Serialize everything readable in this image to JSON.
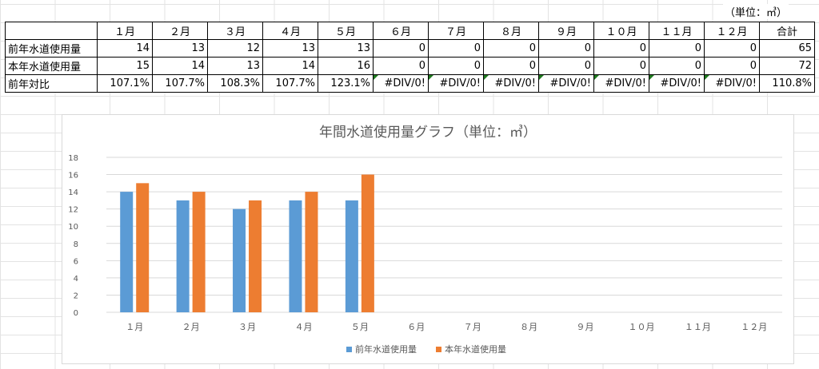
{
  "unit_note": "（単位：㎥）",
  "table": {
    "headers": [
      "",
      "１月",
      "２月",
      "３月",
      "４月",
      "５月",
      "６月",
      "７月",
      "８月",
      "９月",
      "１０月",
      "１１月",
      "１２月",
      "合計"
    ],
    "rows": [
      {
        "label": "前年水道使用量",
        "cells": [
          "14",
          "13",
          "12",
          "13",
          "13",
          "0",
          "0",
          "0",
          "0",
          "0",
          "0",
          "0",
          "65"
        ],
        "errors": [
          false,
          false,
          false,
          false,
          false,
          false,
          false,
          false,
          false,
          false,
          false,
          false,
          false
        ]
      },
      {
        "label": "本年水道使用量",
        "cells": [
          "15",
          "14",
          "13",
          "14",
          "16",
          "0",
          "0",
          "0",
          "0",
          "0",
          "0",
          "0",
          "72"
        ],
        "errors": [
          false,
          false,
          false,
          false,
          false,
          false,
          false,
          false,
          false,
          false,
          false,
          false,
          false
        ]
      },
      {
        "label": "前年対比",
        "cells": [
          "107.1%",
          "107.7%",
          "108.3%",
          "107.7%",
          "123.1%",
          "#DIV/0!",
          "#DIV/0!",
          "#DIV/0!",
          "#DIV/0!",
          "#DIV/0!",
          "#DIV/0!",
          "#DIV/0!",
          "110.8%"
        ],
        "errors": [
          false,
          false,
          false,
          false,
          false,
          true,
          true,
          true,
          true,
          true,
          true,
          true,
          false
        ]
      }
    ]
  },
  "chart_data": {
    "type": "bar",
    "title": "年間水道使用量グラフ（単位：㎥）",
    "categories": [
      "１月",
      "２月",
      "３月",
      "４月",
      "５月",
      "６月",
      "７月",
      "８月",
      "９月",
      "１０月",
      "１１月",
      "１２月"
    ],
    "series": [
      {
        "name": "前年水道使用量",
        "color": "#5b9bd5",
        "values": [
          14,
          13,
          12,
          13,
          13,
          0,
          0,
          0,
          0,
          0,
          0,
          0
        ]
      },
      {
        "name": "本年水道使用量",
        "color": "#ed7d31",
        "values": [
          15,
          14,
          13,
          14,
          16,
          0,
          0,
          0,
          0,
          0,
          0,
          0
        ]
      }
    ],
    "ylim": [
      0,
      18
    ],
    "yticks": [
      0,
      2,
      4,
      6,
      8,
      10,
      12,
      14,
      16,
      18
    ],
    "grid": true,
    "legend": "bottom"
  }
}
